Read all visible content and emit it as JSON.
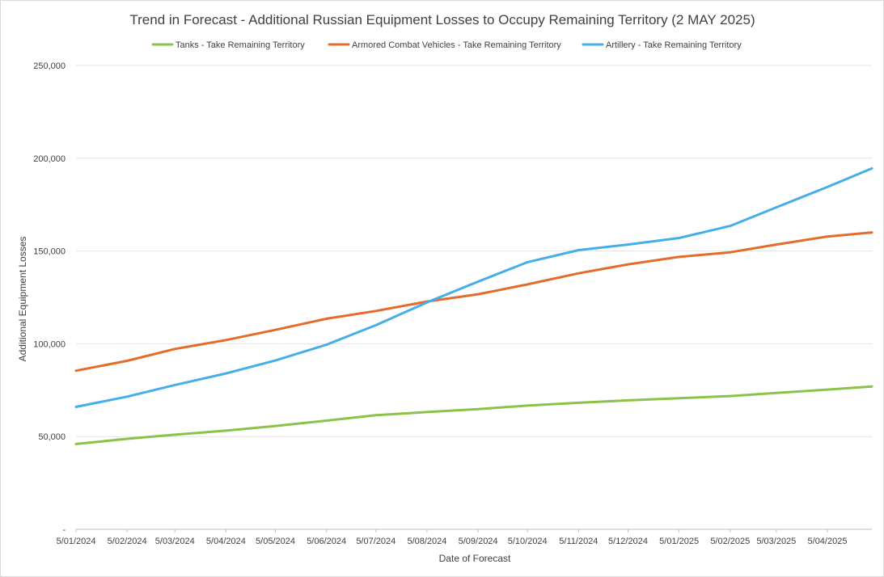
{
  "chart_data": {
    "type": "line",
    "title": "Trend in Forecast - Additional Russian Equipment Losses to Occupy Remaining Territory (2 MAY 2025)",
    "xlabel": "Date of Forecast",
    "ylabel": "Additional Equipment Losses",
    "ylim": [
      0,
      250000
    ],
    "yticks": [
      0,
      50000,
      100000,
      150000,
      200000,
      250000
    ],
    "ytick_labels": [
      "-",
      "50,000",
      "100,000",
      "150,000",
      "200,000",
      "250,000"
    ],
    "x_range": [
      "2024-01-05",
      "2025-05-02"
    ],
    "xtick_labels": [
      "5/01/2024",
      "5/02/2024",
      "5/03/2024",
      "5/04/2024",
      "5/05/2024",
      "5/06/2024",
      "5/07/2024",
      "5/08/2024",
      "5/09/2024",
      "5/10/2024",
      "5/11/2024",
      "5/12/2024",
      "5/01/2025",
      "5/02/2025",
      "5/03/2025",
      "5/04/2025"
    ],
    "legend_position": "top",
    "grid": "horizontal",
    "x": [
      "2024-01-05",
      "2024-02-05",
      "2024-03-05",
      "2024-04-05",
      "2024-05-05",
      "2024-06-05",
      "2024-07-05",
      "2024-08-05",
      "2024-09-05",
      "2024-10-05",
      "2024-11-05",
      "2024-12-05",
      "2025-01-05",
      "2025-02-05",
      "2025-03-05",
      "2025-04-05",
      "2025-05-02"
    ],
    "series": [
      {
        "name": "Tanks - Take Remaining Territory",
        "color": "#8bc34a",
        "values": [
          46000,
          48800,
          51000,
          53200,
          55700,
          58600,
          61500,
          63200,
          64800,
          66700,
          68200,
          69500,
          70700,
          71800,
          73500,
          75300,
          77000
        ]
      },
      {
        "name": "Armored Combat Vehicles - Take Remaining Territory",
        "color": "#e36c2b",
        "values": [
          85500,
          90800,
          97200,
          102000,
          107500,
          113500,
          117700,
          122800,
          126700,
          132000,
          138000,
          142800,
          146800,
          149300,
          153500,
          157800,
          160000
        ]
      },
      {
        "name": "Artillery - Take Remaining Territory",
        "color": "#45aee8",
        "values": [
          66000,
          71500,
          77800,
          84000,
          91000,
          99500,
          110000,
          122300,
          133500,
          144000,
          150500,
          153500,
          157000,
          163500,
          173500,
          184500,
          194500
        ]
      }
    ]
  }
}
